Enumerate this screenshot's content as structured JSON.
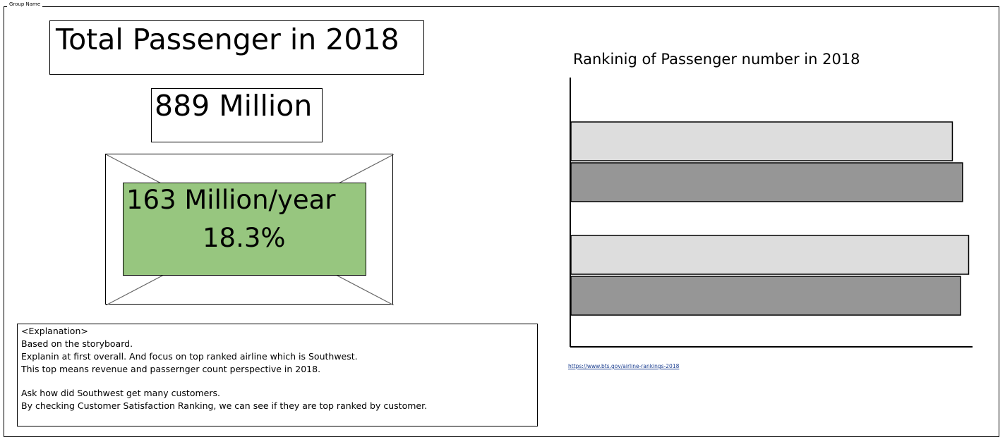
{
  "group": {
    "label": "Group Name"
  },
  "headline": {
    "title": "Total Passenger in 2018",
    "total_value": "889 Million"
  },
  "highlight": {
    "line1": "163 Million/year",
    "line2": "18.3%",
    "fill_color": "#97c67f"
  },
  "explanation": {
    "lines": [
      "<Explanation>",
      "Based on the storyboard.",
      "Explanin at first overall. And focus on top ranked airline which is Southwest.",
      "This top means revenue and passernger count perspective in 2018.",
      "",
      "Ask how did Southwest get many customers.",
      "By checking Customer Satisfaction Ranking, we can see if they are top ranked by customer."
    ]
  },
  "chart_data": {
    "type": "bar",
    "orientation": "horizontal",
    "title": "Rankinig of Passenger number in 2018",
    "xlabel": "",
    "ylabel": "",
    "categories": [
      "",
      ""
    ],
    "series": [
      {
        "values": [
          0.94,
          0.98
        ],
        "color": "#dddddd"
      },
      {
        "values": [
          0.965,
          0.96
        ],
        "color": "#969696"
      }
    ],
    "xlim": [
      0,
      1
    ],
    "grid": false
  },
  "source": {
    "link_text": "https://www.bts.gov/airline-rankings-2018"
  }
}
